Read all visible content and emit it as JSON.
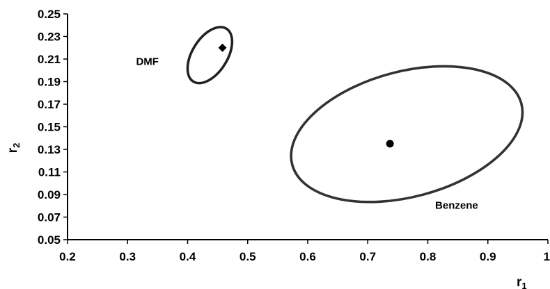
{
  "chart_data": {
    "type": "scatter",
    "x_ticks": [
      "0.2",
      "0.3",
      "0.4",
      "0.5",
      "0.6",
      "0.7",
      "0.8",
      "0.9",
      "1"
    ],
    "y_ticks": [
      "0.05",
      "0.07",
      "0.09",
      "0.11",
      "0.13",
      "0.15",
      "0.17",
      "0.19",
      "0.21",
      "0.23",
      "0.25"
    ],
    "xlim": [
      0.2,
      1.0
    ],
    "ylim": [
      0.05,
      0.25
    ],
    "xlabel": {
      "main": "r",
      "sub": "1"
    },
    "ylabel": {
      "main": "r",
      "sub": "2"
    },
    "grid": false,
    "legend": "none",
    "points": [
      {
        "x": 0.458,
        "y": 0.22,
        "marker": "diamond"
      },
      {
        "x": 0.737,
        "y": 0.135,
        "marker": "circle"
      }
    ],
    "ellipses": [
      {
        "cx": 0.437,
        "cy": 0.2135,
        "rx": 0.052,
        "ry": 0.0155,
        "rotate_deg": -58,
        "stroke": "#222222"
      },
      {
        "cx": 0.765,
        "cy": 0.1435,
        "rx": 0.1975,
        "ry": 0.0555,
        "rotate_deg": -15,
        "stroke": "#333333"
      }
    ],
    "annotations": [
      {
        "text": "DMF",
        "x": 0.333,
        "y": 0.208
      },
      {
        "text": "Benzene",
        "x": 0.848,
        "y": 0.0805
      }
    ]
  }
}
